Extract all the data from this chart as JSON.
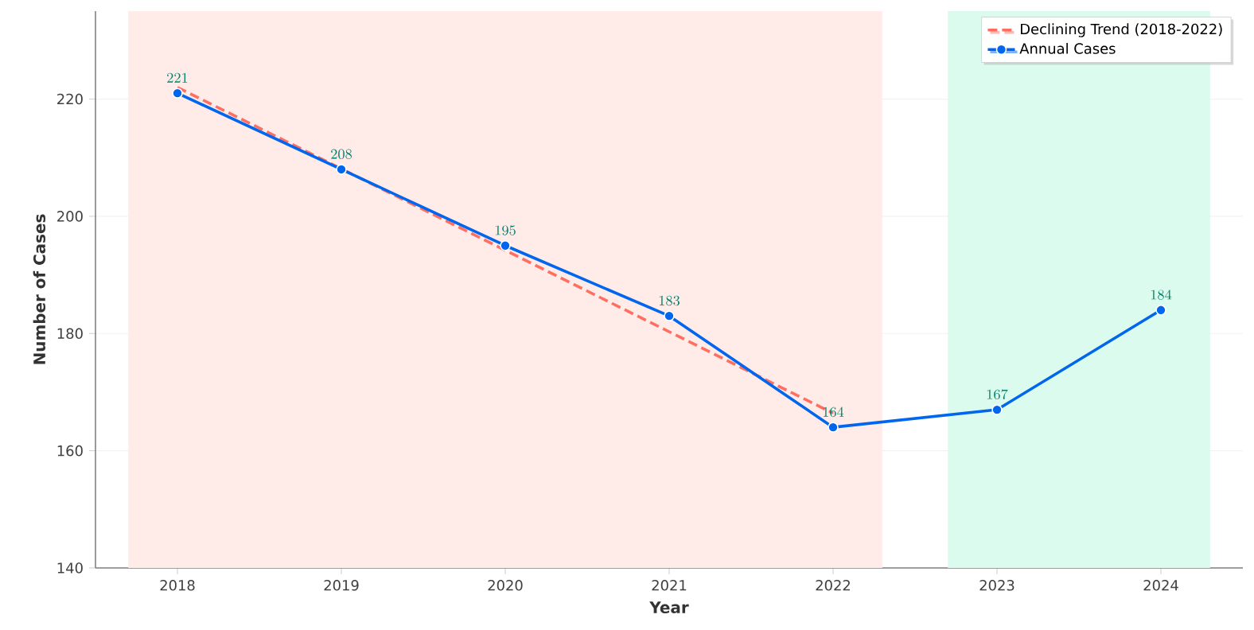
{
  "chart_data": {
    "type": "line",
    "xlabel": "Year",
    "ylabel": "Number of Cases",
    "x": [
      2018,
      2019,
      2020,
      2021,
      2022,
      2023,
      2024
    ],
    "series": [
      {
        "name": "Declining Trend (2018-2022)",
        "color": "#ff6f61",
        "line_style": "dashed",
        "marker": "none",
        "x": [
          2018,
          2022
        ],
        "values": [
          222,
          166.4
        ]
      },
      {
        "name": "Annual Cases",
        "color": "#0066ee",
        "line_style": "solid",
        "marker": "circle",
        "data_labels": true,
        "values": [
          221,
          208,
          195,
          183,
          164,
          167,
          184
        ]
      }
    ],
    "xlim": [
      2017.5,
      2024.5
    ],
    "xticks": [
      2018,
      2019,
      2020,
      2021,
      2022,
      2023,
      2024
    ],
    "ylim": [
      140,
      235
    ],
    "yticks": [
      140,
      160,
      180,
      200,
      220
    ],
    "grid": "y",
    "legend": "top right",
    "bands": [
      {
        "axis": "x",
        "from": 2017.7,
        "to": 2022.3,
        "color": "#ffebe8"
      },
      {
        "axis": "x",
        "from": 2022.7,
        "to": 2024.3,
        "color": "#dbfbee"
      }
    ]
  }
}
